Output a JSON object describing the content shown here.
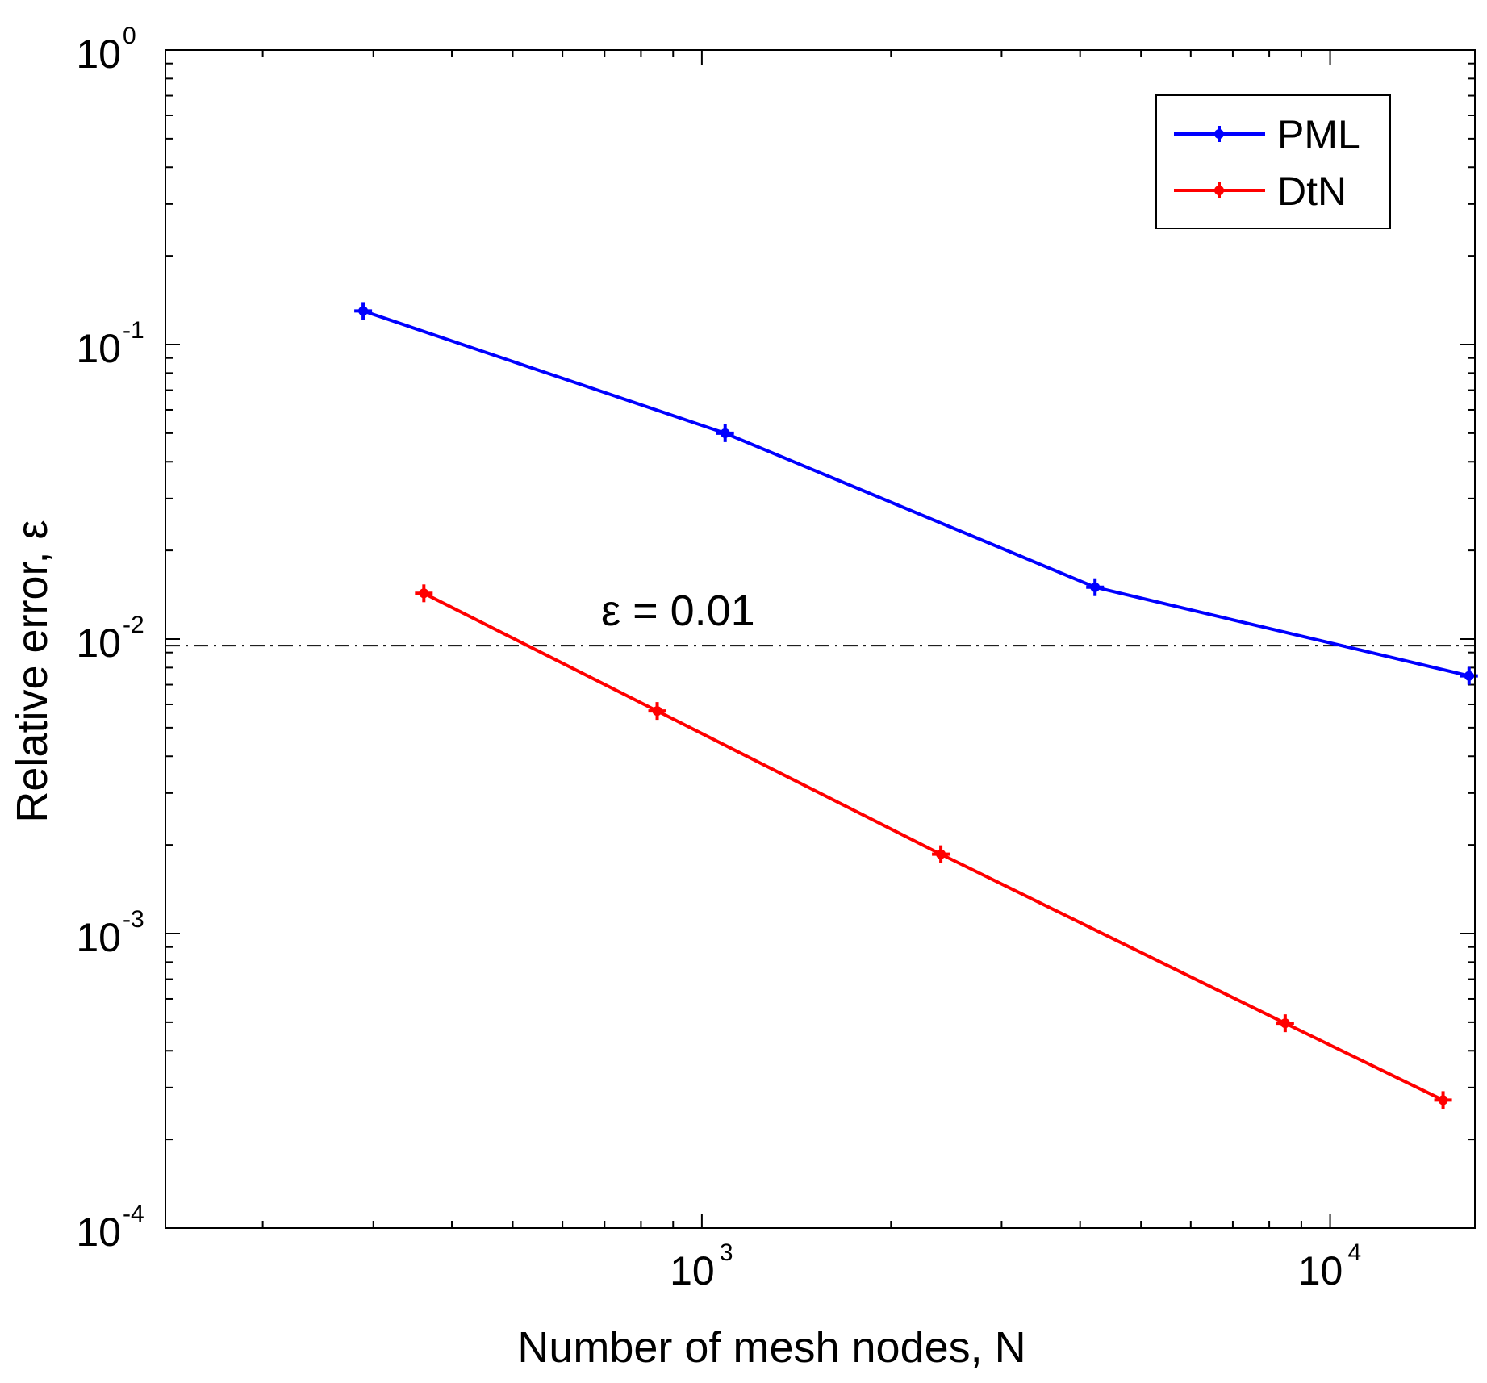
{
  "chart_data": {
    "type": "line",
    "xscale": "log",
    "yscale": "log",
    "xlim": [
      140,
      17000
    ],
    "ylim": [
      0.0001,
      1
    ],
    "xlabel": "Number of mesh nodes, N",
    "ylabel": "Relative error, ε",
    "xticks": [
      {
        "value": 1000,
        "base": "10",
        "exp": "3"
      },
      {
        "value": 10000,
        "base": "10",
        "exp": "4"
      }
    ],
    "yticks": [
      {
        "value": 1,
        "base": "10",
        "exp": "0"
      },
      {
        "value": 0.1,
        "base": "10",
        "exp": "-1"
      },
      {
        "value": 0.01,
        "base": "10",
        "exp": "-2"
      },
      {
        "value": 0.001,
        "base": "10",
        "exp": "-3"
      },
      {
        "value": 0.0001,
        "base": "10",
        "exp": "-4"
      }
    ],
    "grid": false,
    "legend_position": "top-right",
    "series": [
      {
        "name": "PML",
        "color": "#0000ff",
        "x": [
          289,
          1089,
          4225,
          16641
        ],
        "y": [
          0.13,
          0.05,
          0.015,
          0.0075
        ]
      },
      {
        "name": "DtN",
        "color": "#ff0000",
        "x": [
          361,
          849,
          2401,
          8481,
          15129
        ],
        "y": [
          0.0143,
          0.0057,
          0.00186,
          0.000496,
          0.000272
        ]
      }
    ],
    "reference_line": {
      "y": 0.0095,
      "label": "ε = 0.01",
      "style": "dash-dot",
      "color": "#000000"
    }
  }
}
